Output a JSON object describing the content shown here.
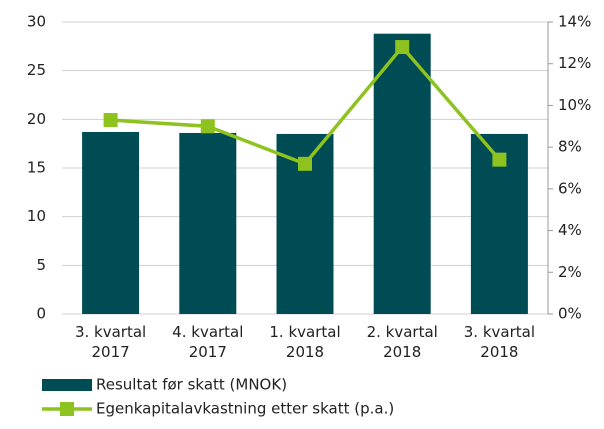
{
  "chart_data": {
    "type": "bar",
    "categories": [
      "3. kvartal 2017",
      "4. kvartal 2017",
      "1. kvartal 2018",
      "2. kvartal 2018",
      "3. kvartal 2018"
    ],
    "series": [
      {
        "name": "Resultat før skatt (MNOK)",
        "color": "#004c55",
        "type": "bar",
        "values": [
          18.7,
          18.6,
          18.5,
          28.8,
          18.5
        ]
      },
      {
        "name": "Egenkapitalavkastning etter skatt (p.a.)",
        "color": "#8dc21f",
        "type": "line",
        "axis": "y2",
        "values": [
          9.3,
          9.0,
          7.2,
          12.8,
          7.4
        ]
      }
    ],
    "ylim": [
      0,
      30
    ],
    "yticks": [
      0,
      5,
      10,
      15,
      20,
      25,
      30
    ],
    "y2lim": [
      0,
      14
    ],
    "y2ticks": [
      {
        "value": 0,
        "label": "0%"
      },
      {
        "value": 2,
        "label": "2%"
      },
      {
        "value": 4,
        "label": "4%"
      },
      {
        "value": 6,
        "label": "6%"
      },
      {
        "value": 8,
        "label": "8%"
      },
      {
        "value": 10,
        "label": "10%"
      },
      {
        "value": 12,
        "label": "12%"
      },
      {
        "value": 14,
        "label": "14%"
      }
    ],
    "grid": true
  }
}
